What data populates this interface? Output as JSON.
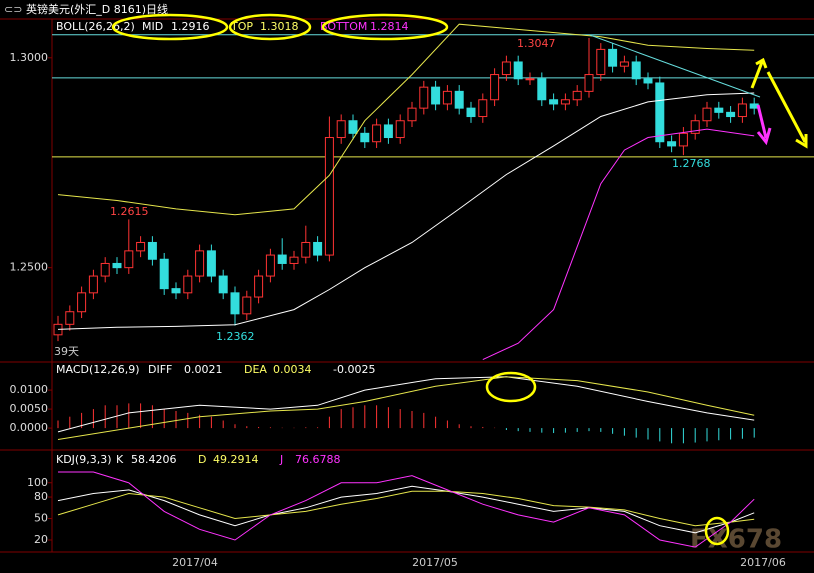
{
  "header": {
    "title": "英镑美元(外汇_D 8161)日线",
    "watermark": "FX678",
    "days": "39天"
  },
  "x_labels": [
    "2017/04",
    "2017/05",
    "2017/06"
  ],
  "chart_data": [
    {
      "type": "candlestick",
      "indicator": "BOLL(26,26,2)",
      "readouts": [
        {
          "name": "MID",
          "value": "1.2916",
          "color": "#ffffff"
        },
        {
          "name": "TOP",
          "value": "1.3018",
          "color": "#ffff66"
        },
        {
          "name": "BOTTOM",
          "value": "1.2814",
          "color": "#ff33ff"
        }
      ],
      "ylim": [
        1.228,
        1.309
      ],
      "yticks": [
        {
          "value": 1.3,
          "label": "1.3000"
        },
        {
          "value": 1.25,
          "label": "1.2500"
        }
      ],
      "up_color": "#ff3333",
      "down_color": "#33dddd",
      "open": [
        1.234,
        1.2365,
        1.2395,
        1.244,
        1.248,
        1.251,
        1.25,
        1.254,
        1.256,
        1.252,
        1.245,
        1.244,
        1.248,
        1.254,
        1.248,
        1.244,
        1.239,
        1.243,
        1.248,
        1.253,
        1.251,
        1.2525,
        1.256,
        1.253,
        1.281,
        1.285,
        1.282,
        1.28,
        1.284,
        1.281,
        1.285,
        1.288,
        1.293,
        1.289,
        1.292,
        1.288,
        1.286,
        1.29,
        1.296,
        1.299,
        1.295,
        1.295,
        1.29,
        1.289,
        1.29,
        1.292,
        1.296,
        1.302,
        1.298,
        1.299,
        1.295,
        1.294,
        1.28,
        1.279,
        1.282,
        1.285,
        1.288,
        1.287,
        1.286,
        1.289
      ],
      "high": [
        1.2385,
        1.241,
        1.2455,
        1.2495,
        1.2525,
        1.2525,
        1.2615,
        1.2575,
        1.2575,
        1.2535,
        1.2465,
        1.2495,
        1.2555,
        1.2555,
        1.2495,
        1.2455,
        1.2445,
        1.2495,
        1.2545,
        1.257,
        1.254,
        1.26,
        1.2575,
        1.286,
        1.2865,
        1.2865,
        1.2835,
        1.2855,
        1.2855,
        1.2865,
        1.2895,
        1.2945,
        1.2945,
        1.2935,
        1.2935,
        1.2895,
        1.2915,
        1.2975,
        1.3005,
        1.3005,
        1.2965,
        1.2965,
        1.2915,
        1.2915,
        1.2935,
        1.3047,
        1.3035,
        1.3035,
        1.3005,
        1.3005,
        1.2965,
        1.2955,
        1.2815,
        1.2835,
        1.2865,
        1.2895,
        1.2895,
        1.2885,
        1.2905,
        1.2905
      ],
      "low": [
        1.2325,
        1.235,
        1.238,
        1.2425,
        1.2465,
        1.2485,
        1.2485,
        1.2525,
        1.2505,
        1.2435,
        1.2425,
        1.2425,
        1.2465,
        1.2465,
        1.2425,
        1.2362,
        1.2375,
        1.2415,
        1.2465,
        1.2495,
        1.2495,
        1.251,
        1.2515,
        1.2515,
        1.2795,
        1.2805,
        1.2785,
        1.2785,
        1.2795,
        1.2795,
        1.2835,
        1.2865,
        1.2875,
        1.2875,
        1.2865,
        1.2845,
        1.2845,
        1.2885,
        1.2945,
        1.2935,
        1.2935,
        1.2885,
        1.2875,
        1.2875,
        1.2885,
        1.2905,
        1.2945,
        1.2965,
        1.2965,
        1.2935,
        1.2925,
        1.2785,
        1.2775,
        1.2768,
        1.2805,
        1.2835,
        1.2855,
        1.2845,
        1.2845,
        1.2865
      ],
      "close": [
        1.2365,
        1.2395,
        1.244,
        1.248,
        1.251,
        1.25,
        1.254,
        1.256,
        1.252,
        1.245,
        1.244,
        1.248,
        1.254,
        1.248,
        1.244,
        1.239,
        1.243,
        1.248,
        1.253,
        1.251,
        1.2525,
        1.256,
        1.253,
        1.281,
        1.285,
        1.282,
        1.28,
        1.284,
        1.281,
        1.285,
        1.288,
        1.293,
        1.289,
        1.292,
        1.288,
        1.286,
        1.29,
        1.296,
        1.299,
        1.295,
        1.295,
        1.29,
        1.289,
        1.29,
        1.292,
        1.296,
        1.302,
        1.298,
        1.299,
        1.295,
        1.294,
        1.28,
        1.279,
        1.282,
        1.285,
        1.288,
        1.287,
        1.286,
        1.289,
        1.288
      ],
      "series": [
        {
          "name": "TOP",
          "color": "#e6e64c",
          "x": [
            0,
            5,
            10,
            15,
            20,
            23,
            26,
            30,
            34,
            46,
            50,
            55,
            59
          ],
          "values": [
            1.2674,
            1.266,
            1.264,
            1.2626,
            1.264,
            1.272,
            1.285,
            1.296,
            1.308,
            1.305,
            1.303,
            1.3022,
            1.3018
          ]
        },
        {
          "name": "MID",
          "color": "#ffffff",
          "x": [
            0,
            5,
            10,
            15,
            20,
            23,
            26,
            30,
            34,
            38,
            42,
            46,
            50,
            55,
            59
          ],
          "values": [
            1.2353,
            1.2358,
            1.236,
            1.2364,
            1.24,
            1.2448,
            1.25,
            1.256,
            1.264,
            1.2722,
            1.279,
            1.286,
            1.2895,
            1.2912,
            1.2916
          ]
        },
        {
          "name": "BOTTOM",
          "color": "#ff33ff",
          "x": [
            36,
            39,
            42,
            44,
            46,
            48,
            50,
            55,
            59
          ],
          "values": [
            1.2281,
            1.232,
            1.24,
            1.255,
            1.27,
            1.278,
            1.281,
            1.283,
            1.2814
          ]
        }
      ],
      "hlines": [
        {
          "value": 1.3055,
          "color": "#66dddd"
        },
        {
          "value": 1.2952,
          "color": "#66dddd"
        },
        {
          "value": 1.2764,
          "color": "#e6e64c"
        }
      ],
      "annotations": [
        "1.2615",
        "1.2362",
        "1.3047",
        "1.2768"
      ]
    },
    {
      "type": "macd",
      "indicator": "MACD(12,26,9)",
      "readouts": [
        {
          "name": "DIFF",
          "value": "0.0021",
          "color": "#ffffff"
        },
        {
          "name": "DEA",
          "value": "0.0034",
          "color": "#ffff66"
        },
        {
          "name": "",
          "value": "-0.0025",
          "color": "#ffffff"
        }
      ],
      "ylim": [
        -0.0055,
        0.0166
      ],
      "yticks": [
        {
          "value": 0.01,
          "label": "0.0100"
        },
        {
          "value": 0.005,
          "label": "0.0050"
        },
        {
          "value": 0,
          "label": "0.0000"
        }
      ],
      "up_color": "#ff3333",
      "down_color": "#33dddd",
      "values": [
        0.002,
        0.003,
        0.004,
        0.005,
        0.006,
        0.006,
        0.0065,
        0.0065,
        0.006,
        0.005,
        0.0045,
        0.004,
        0.0035,
        0.003,
        0.002,
        0.001,
        0.0005,
        0.0003,
        0.0002,
        0.0001,
        0.0001,
        0.0002,
        0.0002,
        0.003,
        0.005,
        0.0055,
        0.006,
        0.006,
        0.0055,
        0.005,
        0.0045,
        0.004,
        0.003,
        0.002,
        0.001,
        0.0005,
        0.0003,
        0.0001,
        -0.0005,
        -0.0008,
        -0.001,
        -0.0012,
        -0.0013,
        -0.0012,
        -0.001,
        -0.0008,
        -0.001,
        -0.0015,
        -0.002,
        -0.0025,
        -0.003,
        -0.0035,
        -0.004,
        -0.004,
        -0.0038,
        -0.0035,
        -0.0032,
        -0.003,
        -0.0028,
        -0.0025
      ],
      "series": [
        {
          "name": "DIFF",
          "color": "#ffffff",
          "x": [
            0,
            6,
            12,
            18,
            22,
            26,
            32,
            38,
            44,
            50,
            55,
            59
          ],
          "values": [
            -0.001,
            0.004,
            0.006,
            0.005,
            0.006,
            0.01,
            0.013,
            0.0135,
            0.011,
            0.007,
            0.004,
            0.0021
          ]
        },
        {
          "name": "DEA",
          "color": "#e6e64c",
          "x": [
            0,
            6,
            12,
            18,
            22,
            26,
            32,
            38,
            44,
            50,
            55,
            59
          ],
          "values": [
            -0.003,
            0.0,
            0.003,
            0.0045,
            0.005,
            0.007,
            0.011,
            0.0135,
            0.0125,
            0.0095,
            0.006,
            0.0034
          ]
        }
      ]
    },
    {
      "type": "kdj",
      "indicator": "KDJ(9,3,3)",
      "readouts": [
        {
          "name": "K",
          "value": "58.4206",
          "color": "#ffffff"
        },
        {
          "name": "D",
          "value": "49.2914",
          "color": "#ffff66"
        },
        {
          "name": "J",
          "value": "76.6788",
          "color": "#ff33ff"
        }
      ],
      "ylim": [
        6,
        143
      ],
      "yticks": [
        100,
        80,
        50,
        20
      ],
      "series": [
        {
          "name": "K",
          "color": "#ffffff",
          "x": [
            0,
            3,
            6,
            9,
            12,
            15,
            18,
            21,
            24,
            27,
            30,
            33,
            36,
            39,
            42,
            45,
            48,
            51,
            54,
            57,
            59
          ],
          "values": [
            75,
            85,
            90,
            75,
            55,
            40,
            55,
            65,
            80,
            85,
            95,
            88,
            80,
            70,
            60,
            65,
            60,
            40,
            30,
            45,
            58
          ]
        },
        {
          "name": "D",
          "color": "#e6e64c",
          "x": [
            0,
            3,
            6,
            9,
            12,
            15,
            18,
            21,
            24,
            27,
            30,
            33,
            36,
            39,
            42,
            45,
            48,
            51,
            54,
            57,
            59
          ],
          "values": [
            55,
            70,
            85,
            80,
            65,
            50,
            55,
            60,
            70,
            78,
            88,
            88,
            85,
            78,
            68,
            66,
            62,
            50,
            40,
            45,
            49
          ]
        },
        {
          "name": "J",
          "color": "#ff33ff",
          "x": [
            0,
            3,
            6,
            9,
            12,
            15,
            18,
            21,
            24,
            27,
            30,
            33,
            36,
            39,
            42,
            45,
            48,
            51,
            54,
            57,
            59
          ],
          "values": [
            115,
            115,
            100,
            60,
            35,
            20,
            55,
            75,
            100,
            100,
            110,
            90,
            70,
            55,
            45,
            65,
            55,
            20,
            10,
            45,
            77
          ]
        }
      ]
    }
  ]
}
